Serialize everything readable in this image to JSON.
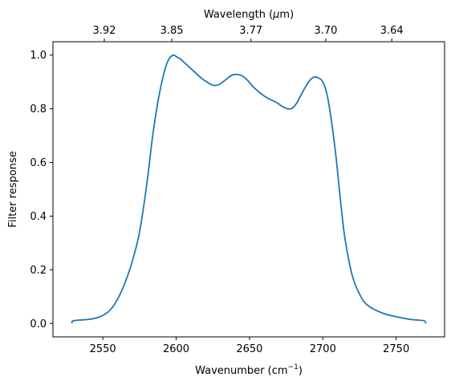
{
  "chart_data": {
    "type": "line",
    "xlabel": "Wavenumber (cm",
    "xlabel_sup": "−1",
    "xlabel_close": ")",
    "ylabel": "Filter response",
    "top_xlabel_prefix": "Wavelength (",
    "top_xlabel_mu": "μ",
    "top_xlabel_suffix": "m)",
    "xlim": [
      2516,
      2783
    ],
    "ylim": [
      -0.05,
      1.05
    ],
    "x_ticks": [
      2550,
      2600,
      2650,
      2700,
      2750
    ],
    "x_tick_labels": [
      "2550",
      "2600",
      "2650",
      "2700",
      "2750"
    ],
    "y_ticks": [
      0.0,
      0.2,
      0.4,
      0.6,
      0.8,
      1.0
    ],
    "y_tick_labels": [
      "0.0",
      "0.2",
      "0.4",
      "0.6",
      "0.8",
      "1.0"
    ],
    "top_ticks": [
      {
        "wavenumber": 2551,
        "label": "3.92"
      },
      {
        "wavenumber": 2597,
        "label": "3.85"
      },
      {
        "wavenumber": 2651,
        "label": "3.77"
      },
      {
        "wavenumber": 2702,
        "label": "3.70"
      },
      {
        "wavenumber": 2747,
        "label": "3.64"
      }
    ],
    "grid": false,
    "series": [
      {
        "color": "#1f77b4",
        "x": [
          2529,
          2530,
          2540,
          2545,
          2550,
          2555,
          2560,
          2565,
          2570,
          2575,
          2580,
          2584,
          2588,
          2592,
          2595,
          2598,
          2600,
          2603,
          2607,
          2612,
          2617,
          2621,
          2625,
          2629,
          2633,
          2637,
          2640,
          2644,
          2648,
          2652,
          2656,
          2660,
          2664,
          2668,
          2672,
          2676,
          2679,
          2682,
          2685,
          2688,
          2691,
          2694,
          2697,
          2700,
          2703,
          2706,
          2709,
          2712,
          2715,
          2720,
          2725,
          2730,
          2740,
          2750,
          2760,
          2769,
          2770
        ],
        "y": [
          0.0,
          0.01,
          0.015,
          0.02,
          0.03,
          0.05,
          0.09,
          0.15,
          0.23,
          0.34,
          0.52,
          0.7,
          0.84,
          0.94,
          0.985,
          1.0,
          0.995,
          0.985,
          0.965,
          0.94,
          0.915,
          0.9,
          0.888,
          0.89,
          0.905,
          0.922,
          0.928,
          0.925,
          0.91,
          0.885,
          0.865,
          0.848,
          0.835,
          0.825,
          0.81,
          0.8,
          0.802,
          0.82,
          0.85,
          0.88,
          0.905,
          0.918,
          0.915,
          0.9,
          0.85,
          0.75,
          0.62,
          0.46,
          0.32,
          0.18,
          0.11,
          0.07,
          0.04,
          0.025,
          0.015,
          0.01,
          0.0
        ]
      }
    ]
  }
}
